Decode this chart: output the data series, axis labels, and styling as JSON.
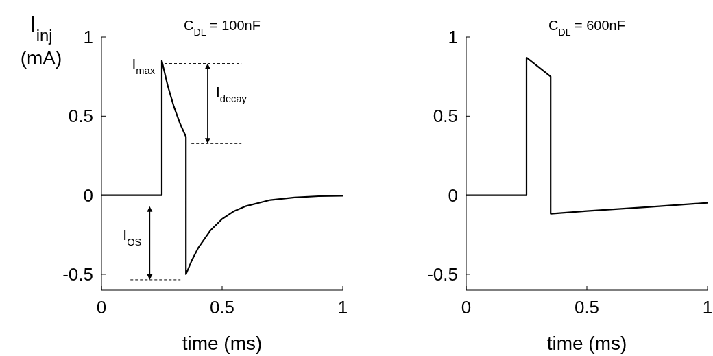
{
  "chart_data": [
    {
      "type": "line",
      "title": "C$_{DL}$ = 100nF",
      "xlabel": "time (ms)",
      "ylabel": "I$_{inj}$ (mA)",
      "xlim": [
        0,
        1
      ],
      "ylim": [
        -0.6,
        1
      ],
      "xticks": [
        0,
        0.5,
        1
      ],
      "yticks": [
        -0.5,
        0,
        0.5,
        1
      ],
      "grid": false,
      "series": [
        {
          "color": "#000000",
          "x": [
            0,
            0.25,
            0.25,
            0.275,
            0.3,
            0.325,
            0.35,
            0.35,
            0.375,
            0.4,
            0.45,
            0.5,
            0.55,
            0.6,
            0.7,
            0.8,
            0.9,
            1
          ],
          "values": [
            0,
            0,
            0.85,
            0.69,
            0.56,
            0.455,
            0.37,
            -0.5,
            -0.41,
            -0.335,
            -0.225,
            -0.15,
            -0.1,
            -0.068,
            -0.03,
            -0.014,
            -0.006,
            -0.003
          ]
        }
      ],
      "annotations": [
        "I$_{max}$",
        "I$_{decay}$",
        "I$_{OS}$"
      ]
    },
    {
      "type": "line",
      "title": "C$_{DL}$ = 600nF",
      "xlabel": "time (ms)",
      "xlim": [
        0,
        1
      ],
      "ylim": [
        -0.6,
        1
      ],
      "xticks": [
        0,
        0.5,
        1
      ],
      "yticks": [
        -0.5,
        0,
        0.5,
        1
      ],
      "grid": false,
      "series": [
        {
          "color": "#000000",
          "x": [
            0,
            0.25,
            0.25,
            0.35,
            0.35,
            0.5,
            0.75,
            1
          ],
          "values": [
            0,
            0,
            0.87,
            0.75,
            -0.117,
            -0.1,
            -0.075,
            -0.048
          ]
        }
      ]
    }
  ]
}
